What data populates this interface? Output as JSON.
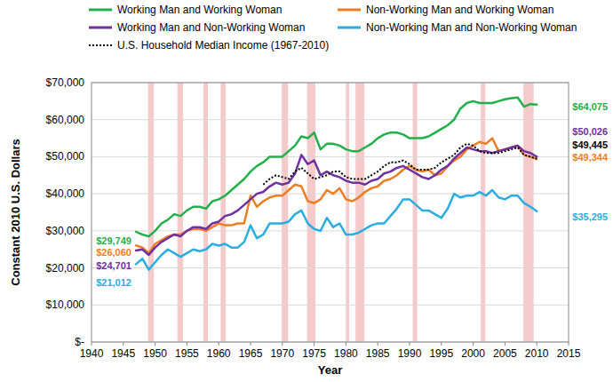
{
  "chart_data": {
    "type": "line",
    "x_label": "Year",
    "y_label": "Constant 2010 U.S. Dollars",
    "xlim": [
      1940,
      2015
    ],
    "xticks": [
      1940,
      1945,
      1950,
      1955,
      1960,
      1965,
      1970,
      1975,
      1980,
      1985,
      1990,
      1995,
      2000,
      2005,
      2010,
      2015
    ],
    "ylim": [
      0,
      70000
    ],
    "yticks": [
      {
        "value": 0,
        "label": "$-"
      },
      {
        "value": 10000,
        "label": "$10,000"
      },
      {
        "value": 20000,
        "label": "$20,000"
      },
      {
        "value": 30000,
        "label": "$30,000"
      },
      {
        "value": 40000,
        "label": "$40,000"
      },
      {
        "value": 50000,
        "label": "$50,000"
      },
      {
        "value": 60000,
        "label": "$60,000"
      },
      {
        "value": 70000,
        "label": "$70,000"
      }
    ],
    "grid": true,
    "legend": "top",
    "x": [
      1947,
      1948,
      1949,
      1950,
      1951,
      1952,
      1953,
      1954,
      1955,
      1956,
      1957,
      1958,
      1959,
      1960,
      1961,
      1962,
      1963,
      1964,
      1965,
      1966,
      1967,
      1968,
      1969,
      1970,
      1971,
      1972,
      1973,
      1974,
      1975,
      1976,
      1977,
      1978,
      1979,
      1980,
      1981,
      1982,
      1983,
      1984,
      1985,
      1986,
      1987,
      1988,
      1989,
      1990,
      1991,
      1992,
      1993,
      1994,
      1995,
      1996,
      1997,
      1998,
      1999,
      2000,
      2001,
      2002,
      2003,
      2004,
      2005,
      2006,
      2007,
      2008,
      2009,
      2010
    ],
    "series": [
      {
        "name": "Working Man and Working Woman",
        "color": "#22b04b",
        "line_style": "solid",
        "values": [
          29749,
          29000,
          28500,
          30000,
          32000,
          33000,
          34500,
          34000,
          35500,
          36500,
          36500,
          36000,
          38000,
          38500,
          39500,
          41000,
          42500,
          44000,
          46000,
          47500,
          48500,
          50000,
          50000,
          50000,
          51500,
          53000,
          55500,
          55000,
          56500,
          52000,
          53500,
          53500,
          53000,
          52000,
          51500,
          51500,
          52500,
          53500,
          55000,
          56000,
          56500,
          56500,
          56000,
          55000,
          55000,
          55000,
          55500,
          56500,
          57500,
          58500,
          60000,
          63000,
          64500,
          65000,
          64500,
          64500,
          64500,
          65000,
          65500,
          65800,
          66000,
          63500,
          64200,
          64075
        ]
      },
      {
        "name": "Non-Working Man and Working Woman",
        "color": "#ef7d22",
        "line_style": "solid",
        "values": [
          26060,
          25500,
          24000,
          26500,
          27500,
          28500,
          29000,
          29000,
          30000,
          30500,
          30500,
          30000,
          31000,
          32000,
          31500,
          31500,
          32000,
          32000,
          39500,
          36500,
          38000,
          39000,
          39500,
          39500,
          41000,
          42500,
          42000,
          38000,
          37500,
          38500,
          41000,
          40000,
          41500,
          38500,
          38000,
          39000,
          40500,
          41500,
          42000,
          43500,
          44000,
          45000,
          46500,
          47500,
          46500,
          46000,
          46500,
          45000,
          45500,
          47500,
          49000,
          50000,
          52000,
          53000,
          54000,
          53500,
          55000,
          51500,
          52000,
          52500,
          53000,
          50500,
          50000,
          49344
        ]
      },
      {
        "name": "Working Man and Non-Working Woman",
        "color": "#7030a0",
        "line_style": "solid",
        "values": [
          24701,
          25000,
          23500,
          25500,
          27000,
          28000,
          29000,
          28500,
          30000,
          31000,
          31000,
          30500,
          32000,
          32500,
          34000,
          34500,
          35500,
          37000,
          38500,
          40000,
          40500,
          42000,
          43000,
          42500,
          43000,
          45500,
          50500,
          48000,
          49000,
          45000,
          46000,
          45000,
          44500,
          43500,
          43000,
          43000,
          42500,
          43500,
          44000,
          45500,
          46000,
          47000,
          47500,
          46500,
          45500,
          44500,
          44000,
          45000,
          46500,
          47500,
          49500,
          51000,
          52500,
          52000,
          51500,
          51500,
          51000,
          51500,
          52000,
          52500,
          53000,
          51500,
          51000,
          50026
        ]
      },
      {
        "name": "Non-Working Man and Non-Working Woman",
        "color": "#29ade2",
        "line_style": "solid",
        "values": [
          21012,
          22500,
          19500,
          21500,
          23500,
          25000,
          24000,
          23000,
          24000,
          25000,
          24500,
          25000,
          26500,
          26000,
          26500,
          25500,
          25500,
          27000,
          31500,
          28000,
          29000,
          32000,
          32000,
          32000,
          32500,
          34500,
          35500,
          32000,
          30500,
          30000,
          33500,
          31000,
          32000,
          29000,
          29000,
          29500,
          30500,
          31500,
          32000,
          32000,
          34000,
          36000,
          38500,
          38500,
          37000,
          35500,
          35500,
          34500,
          33500,
          36000,
          40000,
          39000,
          39500,
          39500,
          40500,
          39500,
          41000,
          39000,
          38500,
          39500,
          39500,
          37500,
          36500,
          35295
        ]
      },
      {
        "name": "U.S. Household Median Income (1967-2010)",
        "color": "#000000",
        "line_style": "dotted",
        "values": [
          null,
          null,
          null,
          null,
          null,
          null,
          null,
          null,
          null,
          null,
          null,
          null,
          null,
          null,
          null,
          null,
          null,
          null,
          null,
          null,
          42500,
          44000,
          45000,
          44500,
          44000,
          46000,
          47000,
          45500,
          44000,
          44500,
          45000,
          46000,
          46000,
          44500,
          44000,
          44000,
          44000,
          45000,
          46000,
          47500,
          48500,
          48500,
          49000,
          48000,
          46500,
          46500,
          46500,
          47000,
          48500,
          49500,
          50500,
          52500,
          53500,
          53000,
          51500,
          51000,
          51000,
          51000,
          51500,
          52000,
          52500,
          50500,
          50000,
          49445
        ]
      }
    ],
    "recessions": [
      {
        "start": 1948.9,
        "end": 1949.8
      },
      {
        "start": 1953.5,
        "end": 1954.4
      },
      {
        "start": 1957.6,
        "end": 1958.3
      },
      {
        "start": 1960.3,
        "end": 1961.1
      },
      {
        "start": 1969.9,
        "end": 1970.9
      },
      {
        "start": 1973.9,
        "end": 1975.2
      },
      {
        "start": 1980.0,
        "end": 1980.5
      },
      {
        "start": 1981.5,
        "end": 1982.9
      },
      {
        "start": 1990.5,
        "end": 1991.2
      },
      {
        "start": 2001.2,
        "end": 2001.9
      },
      {
        "start": 2007.9,
        "end": 2009.5
      }
    ],
    "annotations": [
      {
        "text": "$29,749",
        "x": 1943.5,
        "y": 27300,
        "color": "#22b04b"
      },
      {
        "text": "$26,060",
        "x": 1943.5,
        "y": 24200,
        "color": "#ef7d22"
      },
      {
        "text": "$24,701",
        "x": 1943.5,
        "y": 20600,
        "color": "#7030a0"
      },
      {
        "text": "$21,012",
        "x": 1943.5,
        "y": 16100,
        "color": "#29ade2"
      },
      {
        "text": "$64,075",
        "x": 2015.6,
        "y": 63600,
        "color": "#22b04b"
      },
      {
        "text": "$50,026",
        "x": 2015.6,
        "y": 56800,
        "color": "#7030a0"
      },
      {
        "text": "$49,445",
        "x": 2015.6,
        "y": 53300,
        "color": "#000000"
      },
      {
        "text": "$49,344",
        "x": 2015.6,
        "y": 49900,
        "color": "#ef7d22"
      },
      {
        "text": "$35,295",
        "x": 2015.6,
        "y": 33900,
        "color": "#29ade2"
      }
    ]
  }
}
